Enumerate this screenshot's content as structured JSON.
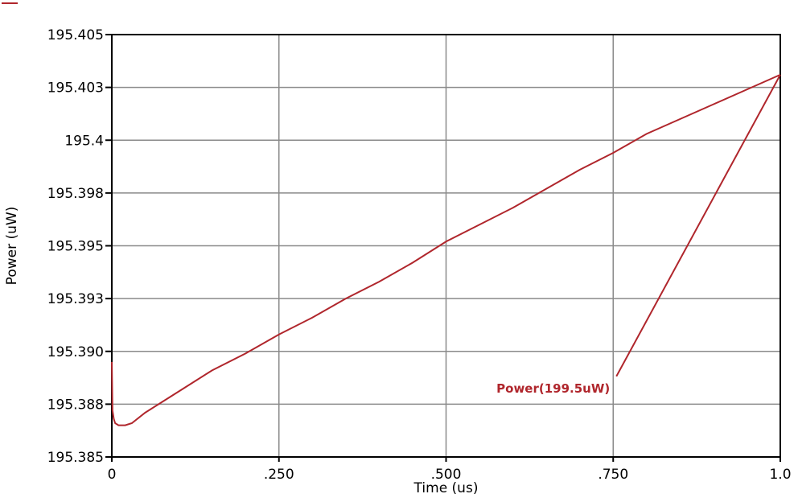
{
  "chart_data": {
    "type": "line",
    "xlabel": "Time (us)",
    "ylabel": "Power (uW)",
    "xlim": [
      0,
      1.0
    ],
    "ylim": [
      195.385,
      195.405
    ],
    "grid": true,
    "x_ticks": [
      {
        "value": 0,
        "label": "0"
      },
      {
        "value": 0.25,
        "label": ".250"
      },
      {
        "value": 0.5,
        "label": ".500"
      },
      {
        "value": 0.75,
        "label": ".750"
      },
      {
        "value": 1.0,
        "label": "1.0"
      }
    ],
    "y_ticks": [
      {
        "value": 195.385,
        "label": "195.385"
      },
      {
        "value": 195.3875,
        "label": "195.388"
      },
      {
        "value": 195.39,
        "label": "195.390"
      },
      {
        "value": 195.3925,
        "label": "195.393"
      },
      {
        "value": 195.395,
        "label": "195.395"
      },
      {
        "value": 195.3975,
        "label": "195.398"
      },
      {
        "value": 195.4,
        "label": "195.4"
      },
      {
        "value": 195.4025,
        "label": "195.403"
      },
      {
        "value": 195.405,
        "label": "195.405"
      }
    ],
    "series": [
      {
        "color": "#b0262c",
        "x": [
          0.0,
          0.001,
          0.003,
          0.005,
          0.01,
          0.02,
          0.03,
          0.05,
          0.08,
          0.1,
          0.15,
          0.2,
          0.25,
          0.3,
          0.35,
          0.4,
          0.45,
          0.5,
          0.55,
          0.6,
          0.65,
          0.7,
          0.75,
          0.8,
          0.85,
          0.9,
          0.95,
          1.0
        ],
        "y": [
          195.3895,
          195.3872,
          195.3868,
          195.3866,
          195.3865,
          195.3865,
          195.3866,
          195.3871,
          195.3877,
          195.3881,
          195.3891,
          195.3899,
          195.3908,
          195.3916,
          195.3925,
          195.3933,
          195.3942,
          195.3952,
          195.396,
          195.3968,
          195.3977,
          195.3986,
          195.3994,
          195.4003,
          195.401,
          195.4017,
          195.4024,
          195.4031
        ]
      }
    ],
    "annotation": {
      "text": "Power(199.5uW)",
      "color": "#b0262c",
      "from": {
        "x": 0.75,
        "y": 195.3892
      },
      "to": {
        "x": 1.0,
        "y": 195.4031
      }
    },
    "legend_swatch_color": "#b0262c"
  }
}
